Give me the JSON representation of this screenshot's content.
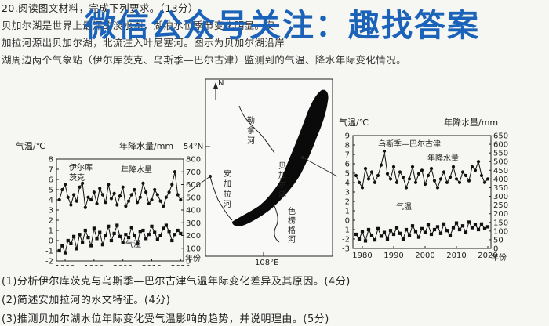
{
  "intro": {
    "header": "20.阅读图文材料，完成下列要求。（13分）",
    "line2_left": "贝加尔湖是世界上最深的淡水湖，湖泊水位季节变化明显。安",
    "line2_right": "明显。安",
    "line3": "加拉河源出贝加尔湖，北流注入叶尼塞河。图示为贝加尔湖沿岸",
    "line4": "湖周边两个气象站（伊尔库茨克、乌斯季—巴尔古津）监测到的气温、降水年际变化情况。"
  },
  "watermark": "微信公众号关注：趣找答案",
  "left_chart": {
    "temp_label": "气温/℃",
    "precip_label": "年降水量/mm",
    "station": "伊尔库\n茨克",
    "station_line1": "伊尔库",
    "station_line2": "茨克",
    "series_precip": "年降水量",
    "series_temp": "气温",
    "x_label": "年份",
    "x_ticks": [
      "1980",
      "1990",
      "2000",
      "2010",
      "2020"
    ],
    "y_left_ticks": [
      "8",
      "7",
      "6",
      "5",
      "4",
      "3",
      "2",
      "1",
      "0",
      "-1",
      "-2"
    ],
    "y_right_ticks": [
      "800",
      "700",
      "600",
      "500",
      "400",
      "300",
      "200",
      "100",
      "0"
    ]
  },
  "map": {
    "north": "N",
    "lat": "54°N",
    "lon": "108°E",
    "river_angara": "安加拉河",
    "river_angara_chars": [
      "安",
      "加",
      "拉",
      "河"
    ],
    "label_lake": "贝加尔湖",
    "label_river_chars": [
      "勒",
      "拿",
      "河"
    ],
    "label_selenga_chars": [
      "色",
      "楞",
      "格",
      "河"
    ],
    "label_lake_chars": [
      "贝",
      "加",
      "尔",
      "湖"
    ]
  },
  "right_chart": {
    "temp_label": "气温/℃",
    "precip_label": "年降水量/mm",
    "station": "乌斯季—巴尔古津",
    "series_precip": "年降水量",
    "series_temp": "气温",
    "x_label": "年份",
    "x_ticks": [
      "1980",
      "1990",
      "2000",
      "2010",
      "2020"
    ],
    "y_left_ticks": [
      "9",
      "8",
      "7",
      "6",
      "5",
      "4",
      "3",
      "2",
      "1",
      "0",
      "-1",
      "-2",
      "-3"
    ],
    "y_right_ticks": [
      "650",
      "600",
      "550",
      "500",
      "450",
      "400",
      "350",
      "300",
      "250",
      "200",
      "150",
      "100",
      "50",
      "0"
    ]
  },
  "chart_data": [
    {
      "type": "line",
      "title": "伊尔库茨克",
      "xlabel": "年份",
      "ylabel": "气温/℃",
      "ylabel_right": "年降水量/mm",
      "xlim": [
        1977,
        2021
      ],
      "ylim": [
        -2,
        8
      ],
      "ylim_right": [
        0,
        800
      ],
      "series": [
        {
          "name": "年降水量",
          "axis": "right",
          "x": [
            1978,
            1979,
            1980,
            1981,
            1982,
            1983,
            1984,
            1985,
            1986,
            1987,
            1988,
            1989,
            1990,
            1991,
            1992,
            1993,
            1994,
            1995,
            1996,
            1997,
            1998,
            1999,
            2000,
            2001,
            2002,
            2003,
            2004,
            2005,
            2006,
            2007,
            2008,
            2009,
            2010,
            2011,
            2012,
            2013,
            2014,
            2015,
            2016,
            2017,
            2018,
            2019,
            2020
          ],
          "values": [
            480,
            560,
            600,
            500,
            440,
            520,
            470,
            580,
            610,
            420,
            500,
            480,
            540,
            450,
            570,
            520,
            460,
            600,
            490,
            530,
            440,
            510,
            580,
            430,
            470,
            520,
            560,
            460,
            500,
            610,
            540,
            450,
            480,
            560,
            520,
            470,
            430,
            500,
            540,
            600,
            700,
            520,
            480
          ]
        },
        {
          "name": "气温",
          "axis": "left",
          "x": [
            1978,
            1979,
            1980,
            1981,
            1982,
            1983,
            1984,
            1985,
            1986,
            1987,
            1988,
            1989,
            1990,
            1991,
            1992,
            1993,
            1994,
            1995,
            1996,
            1997,
            1998,
            1999,
            2000,
            2001,
            2002,
            2003,
            2004,
            2005,
            2006,
            2007,
            2008,
            2009,
            2010,
            2011,
            2012,
            2013,
            2014,
            2015,
            2016,
            2017,
            2018,
            2019,
            2020
          ],
          "values": [
            -1.0,
            -0.5,
            -1.2,
            0.0,
            -0.3,
            0.4,
            -0.8,
            0.6,
            -0.2,
            1.0,
            0.3,
            -0.5,
            1.2,
            0.2,
            0.8,
            -0.4,
            0.5,
            1.4,
            0.0,
            0.7,
            1.5,
            0.4,
            -0.2,
            0.6,
            0.3,
            1.3,
            0.5,
            -0.3,
            0.9,
            1.0,
            0.2,
            0.6,
            1.4,
            0.8,
            0.1,
            0.5,
            1.2,
            1.5,
            0.9,
            0.0,
            0.6,
            1.0,
            0.7
          ]
        }
      ]
    },
    {
      "type": "line",
      "title": "乌斯季—巴尔古津",
      "xlabel": "年份",
      "ylabel": "气温/℃",
      "ylabel_right": "年降水量/mm",
      "xlim": [
        1977,
        2021
      ],
      "ylim": [
        -3,
        9
      ],
      "ylim_right": [
        0,
        650
      ],
      "series": [
        {
          "name": "年降水量",
          "axis": "right",
          "x": [
            1978,
            1979,
            1980,
            1981,
            1982,
            1983,
            1984,
            1985,
            1986,
            1987,
            1988,
            1989,
            1990,
            1991,
            1992,
            1993,
            1994,
            1995,
            1996,
            1997,
            1998,
            1999,
            2000,
            2001,
            2002,
            2003,
            2004,
            2005,
            2006,
            2007,
            2008,
            2009,
            2010,
            2011,
            2012,
            2013,
            2014,
            2015,
            2016,
            2017,
            2018,
            2019,
            2020
          ],
          "values": [
            420,
            380,
            350,
            460,
            400,
            440,
            380,
            420,
            480,
            560,
            430,
            400,
            470,
            380,
            440,
            410,
            350,
            400,
            470,
            380,
            430,
            450,
            370,
            420,
            460,
            390,
            350,
            400,
            440,
            380,
            410,
            470,
            400,
            380,
            440,
            420,
            390,
            470,
            450,
            500,
            420,
            380,
            400
          ]
        },
        {
          "name": "气温",
          "axis": "left",
          "x": [
            1978,
            1979,
            1980,
            1981,
            1982,
            1983,
            1984,
            1985,
            1986,
            1987,
            1988,
            1989,
            1990,
            1991,
            1992,
            1993,
            1994,
            1995,
            1996,
            1997,
            1998,
            1999,
            2000,
            2001,
            2002,
            2003,
            2004,
            2005,
            2006,
            2007,
            2008,
            2009,
            2010,
            2011,
            2012,
            2013,
            2014,
            2015,
            2016,
            2017,
            2018,
            2019,
            2020
          ],
          "values": [
            -1.5,
            -2.0,
            -1.2,
            -2.2,
            -1.0,
            -1.6,
            -2.1,
            -0.9,
            -1.7,
            -1.3,
            -2.0,
            -1.1,
            -1.5,
            -0.8,
            -1.4,
            -2.0,
            -1.0,
            -1.6,
            -0.6,
            -1.2,
            -1.8,
            -0.9,
            -1.3,
            -0.5,
            -1.5,
            -1.0,
            -0.7,
            -1.4,
            -0.4,
            -1.1,
            -1.6,
            -0.8,
            -0.3,
            -1.0,
            -0.6,
            -1.3,
            -0.2,
            -0.8,
            -0.5,
            -1.0,
            -0.4,
            -0.9,
            -0.7
          ]
        }
      ]
    }
  ],
  "questions": [
    "(1)分析伊尔库茨克与乌斯季—巴尔古津气温年际变化差异及其原因。(4分)",
    "(2)简述安加拉河的水文特征。(4分)",
    "(3)推测贝加尔湖水位年际变化受气温影响的趋势，并说明理由。(5分)"
  ]
}
